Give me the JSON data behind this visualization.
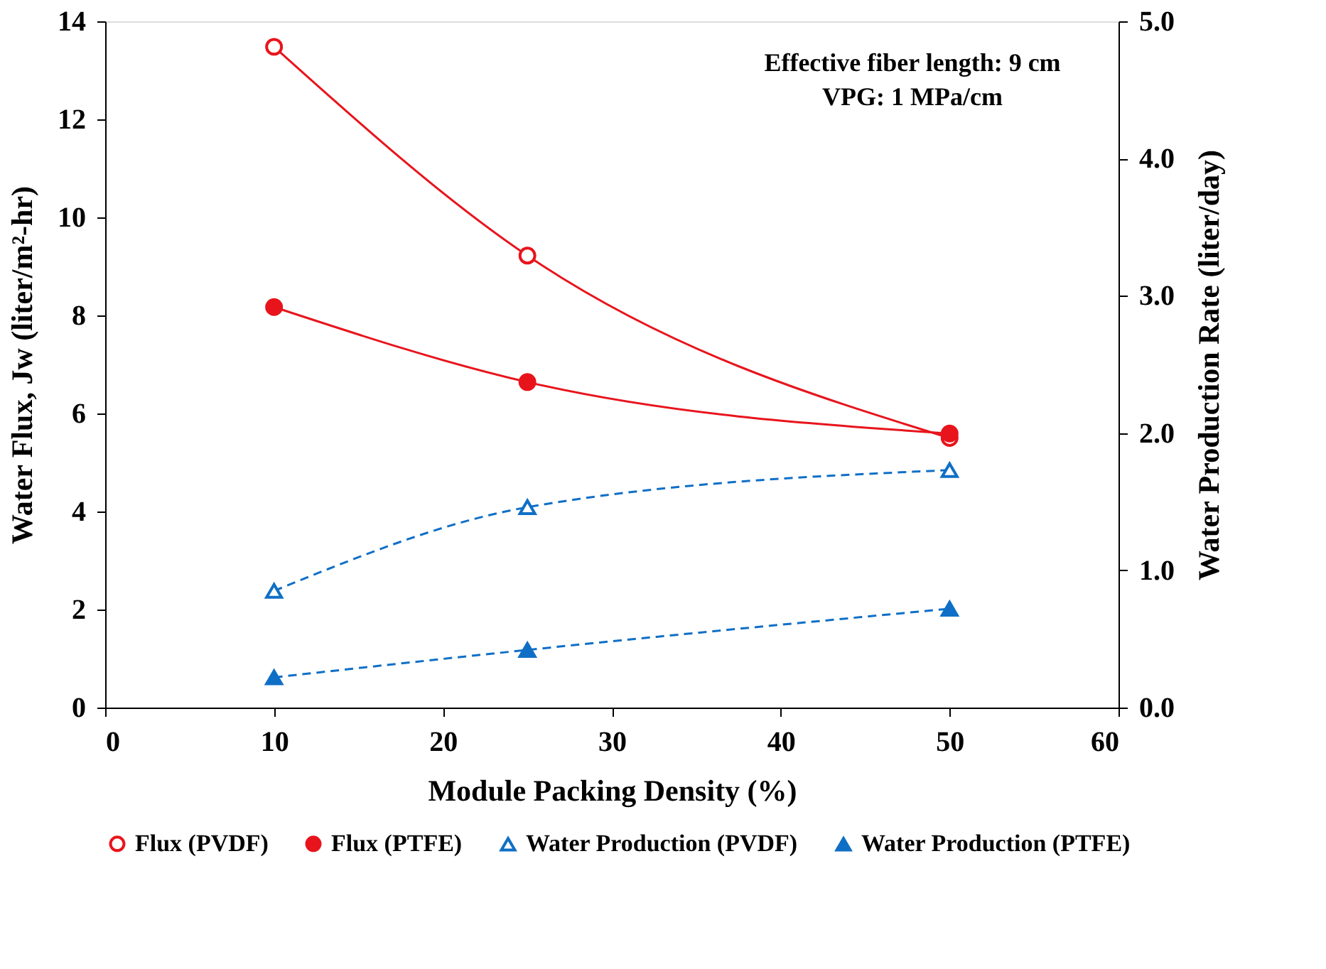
{
  "chart_data": {
    "type": "line",
    "xlabel": "Module Packing Density (%)",
    "ylabel": "Water Flux, Jw (liter/m²-hr)",
    "y2label": "Water Production Rate (liter/day)",
    "x": [
      10,
      25,
      50
    ],
    "series": [
      {
        "name": "Flux (PVDF)",
        "color": "#e8141c",
        "values": [
          13.48,
          9.22,
          5.5
        ],
        "marker": "circle",
        "line_style": "solid"
      },
      {
        "name": "Flux (PTFE)",
        "color": "#e8141c",
        "values": [
          8.17,
          6.64,
          5.59
        ],
        "marker": "circle",
        "line_style": "solid"
      },
      {
        "name": "Water Production (PVDF)",
        "color": "#0f6fc6",
        "values": [
          0.85,
          1.46,
          1.73
        ],
        "marker": "triangle",
        "line_style": "dashed",
        "axis": "y2"
      },
      {
        "name": "Water Production (PTFE)",
        "color": "#0f6fc6",
        "values": [
          0.22,
          0.42,
          0.72
        ],
        "marker": "triangle",
        "line_style": "dashed",
        "axis": "y2"
      }
    ],
    "xlim": [
      0,
      60
    ],
    "xticks": [
      0,
      10,
      20,
      30,
      40,
      50,
      60
    ],
    "ylim": [
      0,
      14
    ],
    "yticks": [
      0,
      2,
      4,
      6,
      8,
      10,
      12,
      14
    ],
    "y2lim": [
      0,
      5
    ],
    "y2ticks": [
      {
        "value": 0,
        "label": "0.0"
      },
      {
        "value": 1,
        "label": "1.0"
      },
      {
        "value": 2,
        "label": "2.0"
      },
      {
        "value": 3,
        "label": "3.0"
      },
      {
        "value": 4,
        "label": "4.0"
      },
      {
        "value": 5,
        "label": "5.0"
      }
    ],
    "annotations": [
      "Effective fiber length: 9 cm",
      "VPG: 1 MPa/cm"
    ],
    "grid": false,
    "legend": "bottom"
  }
}
